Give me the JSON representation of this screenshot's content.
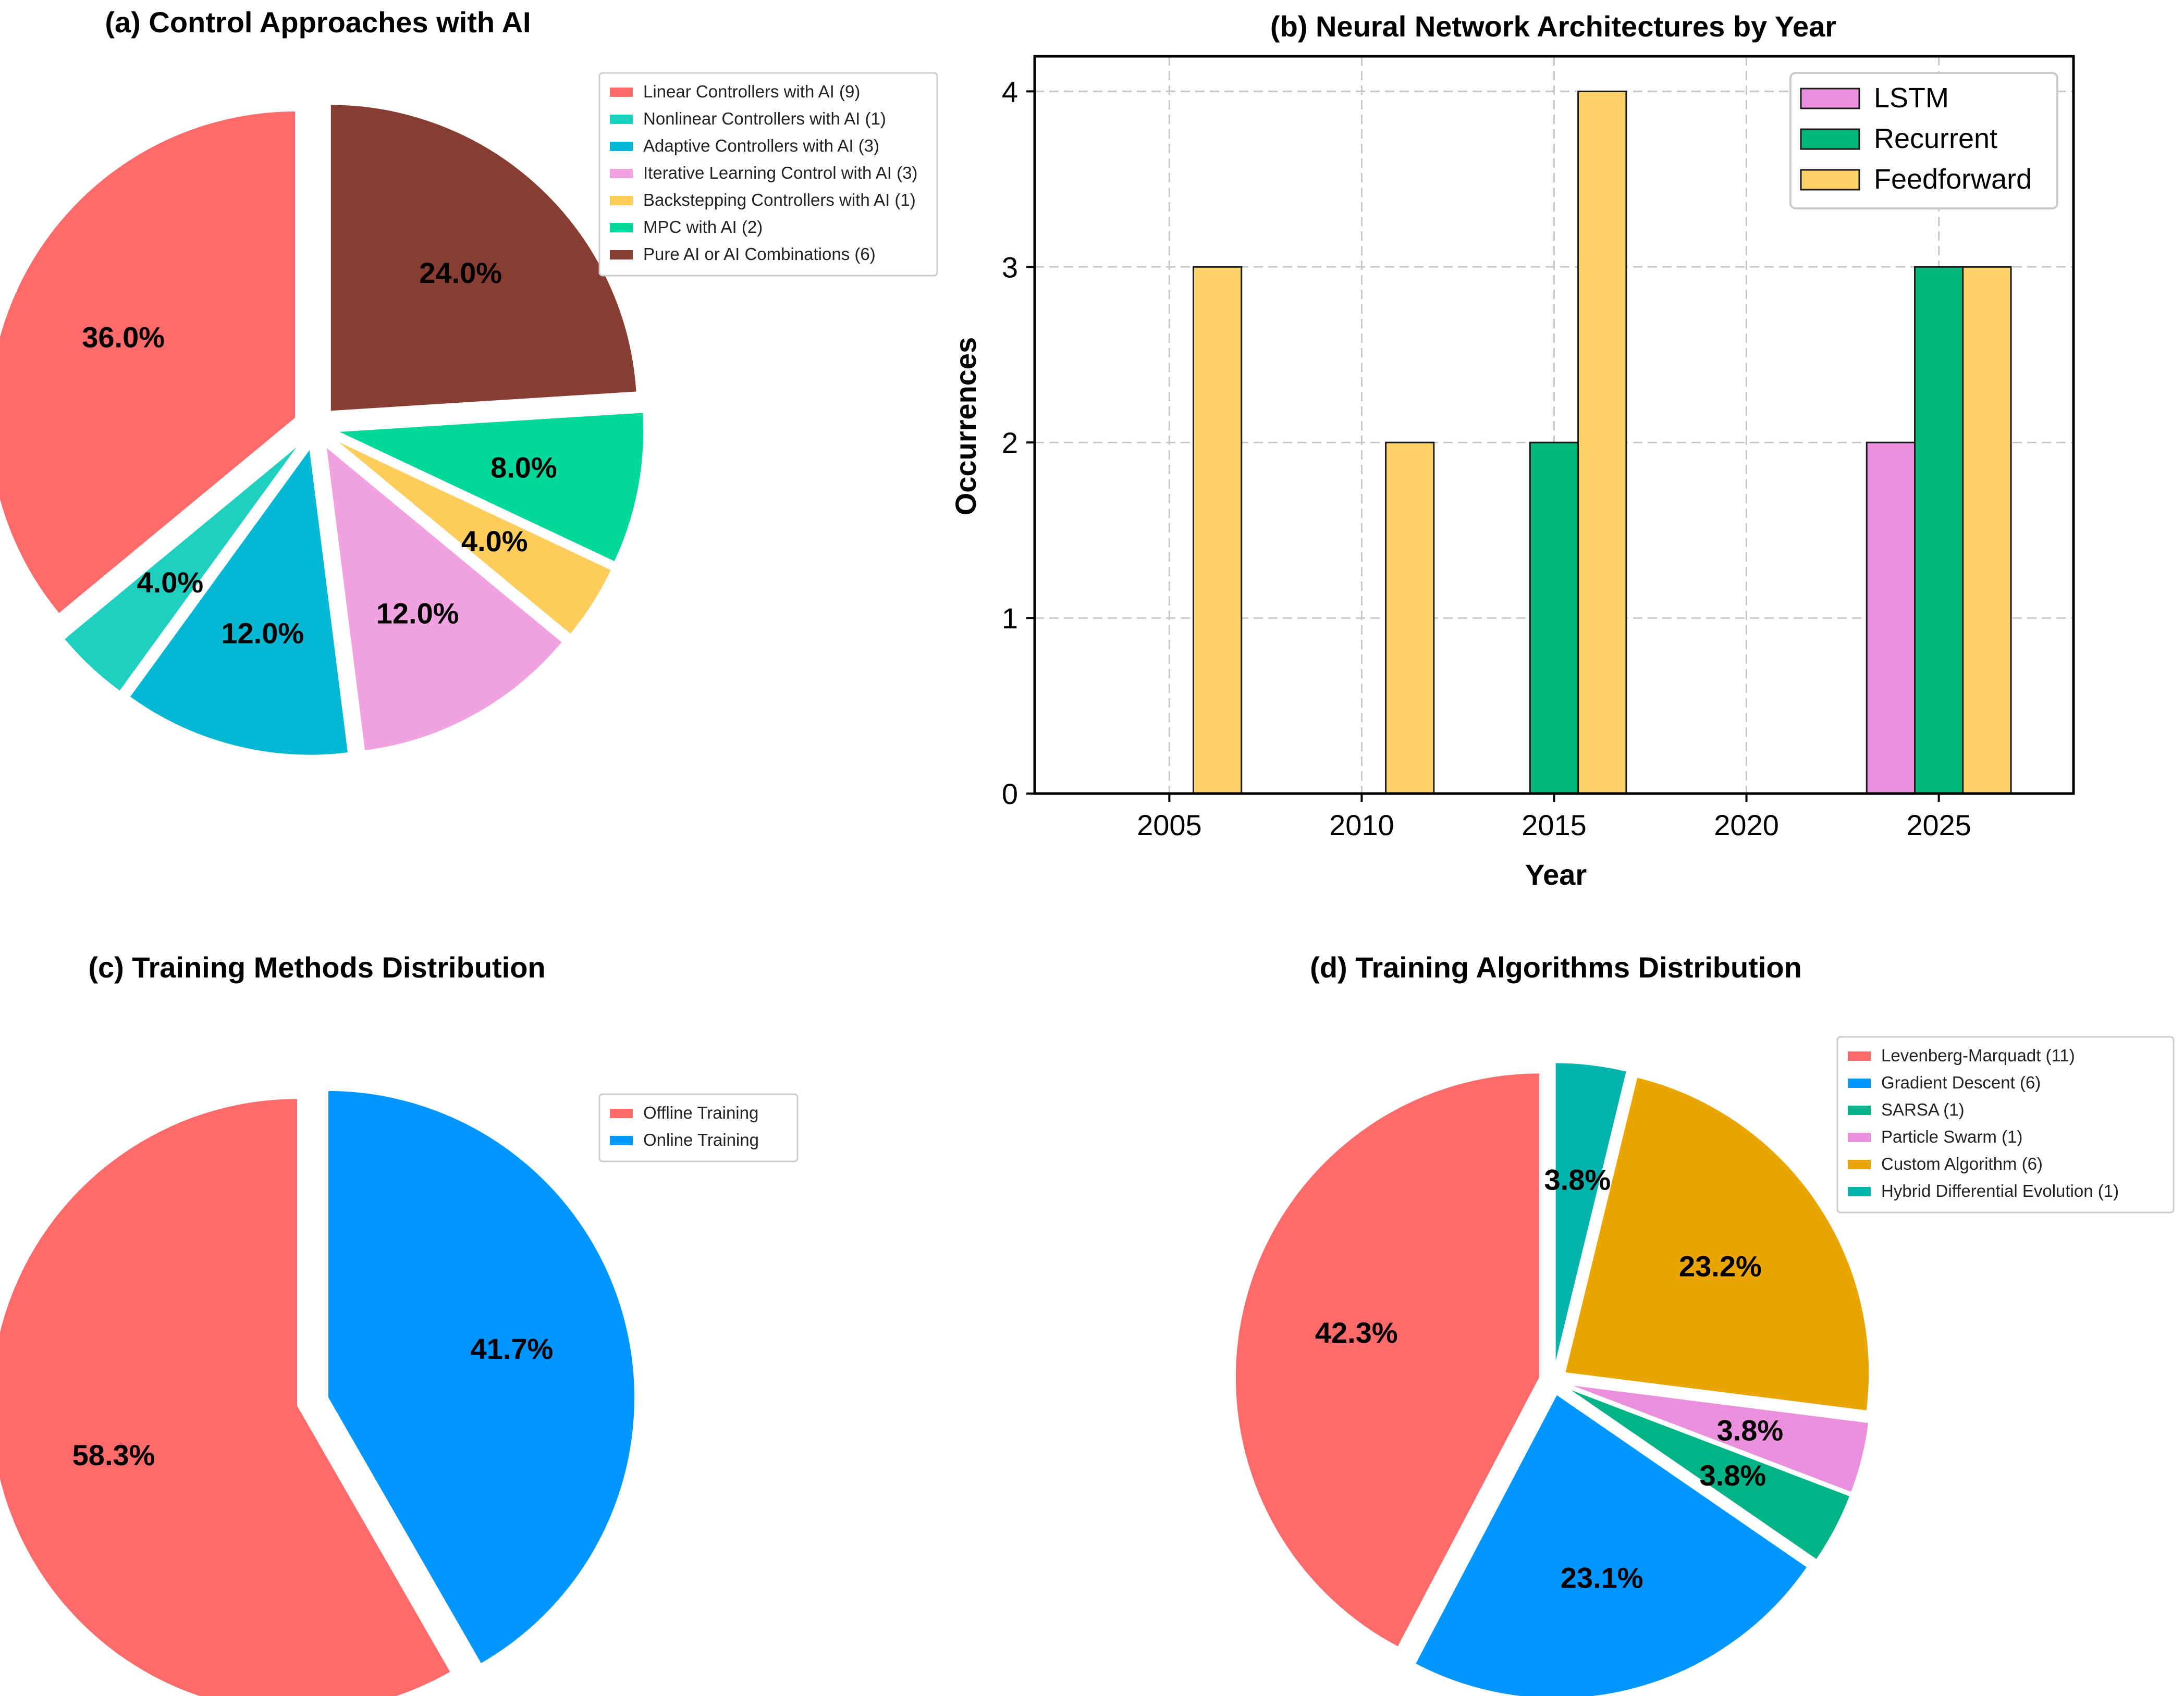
{
  "chart_data": [
    {
      "id": "a",
      "type": "pie",
      "title": "(a) Control Approaches with AI",
      "legend_position": "top-right",
      "slices": [
        {
          "label": "Linear Controllers with AI (9)",
          "value": 9,
          "pct_label": "36.0%",
          "color": "#ff6b6b"
        },
        {
          "label": "Nonlinear Controllers with AI (1)",
          "value": 1,
          "pct_label": "4.0%",
          "color": "#1fcfc0"
        },
        {
          "label": "Adaptive Controllers with AI (3)",
          "value": 3,
          "pct_label": "12.0%",
          "color": "#04b7d3"
        },
        {
          "label": "Iterative Learning Control with AI (3)",
          "value": 3,
          "pct_label": "12.0%",
          "color": "#f0a3e0"
        },
        {
          "label": "Backstepping Controllers with AI (1)",
          "value": 1,
          "pct_label": "4.0%",
          "color": "#fecd5b"
        },
        {
          "label": "MPC with AI (2)",
          "value": 2,
          "pct_label": "8.0%",
          "color": "#00d89b"
        },
        {
          "label": "Pure AI or AI Combinations (6)",
          "value": 6,
          "pct_label": "24.0%",
          "color": "#873d31"
        }
      ]
    },
    {
      "id": "b",
      "type": "bar",
      "title": "(b) Neural Network Architectures by Year",
      "xlabel": "Year",
      "ylabel": "Occurrences",
      "xlim": [
        2001.5,
        2028.5
      ],
      "ylim": [
        0,
        4.2
      ],
      "x_ticks": [
        "2005",
        "2010",
        "2015",
        "2020",
        "2025"
      ],
      "y_ticks": [
        "0",
        "1",
        "2",
        "3",
        "4"
      ],
      "grid": true,
      "legend_position": "top-right",
      "bar_width": 1.25,
      "series": [
        {
          "name": "LSTM",
          "color": "#ea90dd",
          "offset": -1.25,
          "points": [
            {
              "x": 2025,
              "y": 2
            }
          ]
        },
        {
          "name": "Recurrent",
          "color": "#00b67a",
          "offset": 0,
          "points": [
            {
              "x": 2015,
              "y": 2
            },
            {
              "x": 2025,
              "y": 3
            }
          ]
        },
        {
          "name": "Feedforward",
          "color": "#ffd166",
          "offset": 1.25,
          "points": [
            {
              "x": 2005,
              "y": 3
            },
            {
              "x": 2010,
              "y": 2
            },
            {
              "x": 2015,
              "y": 4
            },
            {
              "x": 2025,
              "y": 3
            }
          ]
        }
      ]
    },
    {
      "id": "c",
      "type": "pie",
      "title": "(c) Training Methods Distribution",
      "legend_position": "top-right",
      "slices": [
        {
          "label": "Offline Training",
          "value": 58.3,
          "pct_label": "58.3%",
          "color": "#ff6b6b"
        },
        {
          "label": "Online Training",
          "value": 41.7,
          "pct_label": "41.7%",
          "color": "#0096ff"
        }
      ]
    },
    {
      "id": "d",
      "type": "pie",
      "title": "(d) Training Algorithms Distribution",
      "legend_position": "top-right",
      "slices": [
        {
          "label": "Levenberg-Marquadt (11)",
          "value": 42.3,
          "pct_label": "42.3%",
          "color": "#ff6b6b"
        },
        {
          "label": "Gradient Descent (6)",
          "value": 23.1,
          "pct_label": "23.1%",
          "color": "#0096ff"
        },
        {
          "label": "SARSA (1)",
          "value": 3.8,
          "pct_label": "3.8%",
          "color": "#00b386"
        },
        {
          "label": "Particle Swarm (1)",
          "value": 3.8,
          "pct_label": "3.8%",
          "color": "#ea90dd"
        },
        {
          "label": "Custom Algorithm (6)",
          "value": 23.2,
          "pct_label": "23.2%",
          "color": "#eaa500"
        },
        {
          "label": "Hybrid Differential Evolution (1)",
          "value": 3.8,
          "pct_label": "3.8%",
          "color": "#00b3ac"
        }
      ]
    }
  ]
}
